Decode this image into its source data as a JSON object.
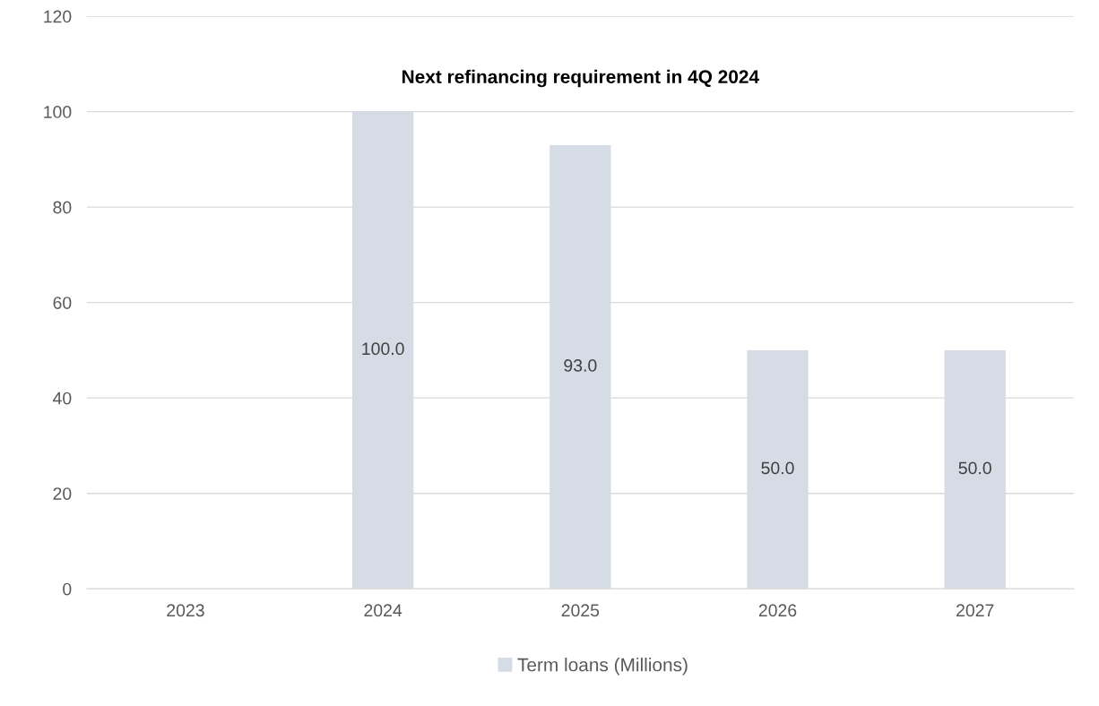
{
  "chart_data": {
    "type": "bar",
    "title": "Next refinancing requirement in 4Q 2024",
    "categories": [
      "2023",
      "2024",
      "2025",
      "2026",
      "2027"
    ],
    "series": [
      {
        "name": "Term loans (Millions)",
        "color": "#d6dce5",
        "values": [
          null,
          100.0,
          93.0,
          50.0,
          50.0
        ],
        "value_labels": [
          null,
          "100.0",
          "93.0",
          "50.0",
          "50.0"
        ]
      }
    ],
    "ylim": [
      0,
      120
    ],
    "yticks": [
      0,
      20,
      40,
      60,
      80,
      100,
      120
    ],
    "grid": "y",
    "legend": "bottom"
  }
}
